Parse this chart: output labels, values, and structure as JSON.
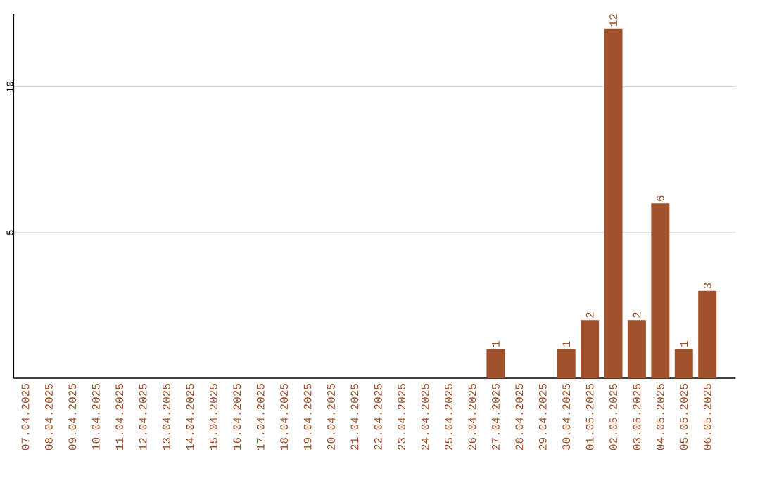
{
  "chart_data": {
    "type": "bar",
    "categories": [
      "07.04.2025",
      "08.04.2025",
      "09.04.2025",
      "10.04.2025",
      "11.04.2025",
      "12.04.2025",
      "13.04.2025",
      "14.04.2025",
      "15.04.2025",
      "16.04.2025",
      "17.04.2025",
      "18.04.2025",
      "19.04.2025",
      "20.04.2025",
      "21.04.2025",
      "22.04.2025",
      "23.04.2025",
      "24.04.2025",
      "25.04.2025",
      "26.04.2025",
      "27.04.2025",
      "28.04.2025",
      "29.04.2025",
      "30.04.2025",
      "01.05.2025",
      "02.05.2025",
      "03.05.2025",
      "04.05.2025",
      "05.05.2025",
      "06.05.2025"
    ],
    "values": [
      0,
      0,
      0,
      0,
      0,
      0,
      0,
      0,
      0,
      0,
      0,
      0,
      0,
      0,
      0,
      0,
      0,
      0,
      0,
      0,
      1,
      0,
      0,
      1,
      2,
      12,
      2,
      6,
      1,
      3
    ],
    "value_labels": [
      null,
      null,
      null,
      null,
      null,
      null,
      null,
      null,
      null,
      null,
      null,
      null,
      null,
      null,
      null,
      null,
      null,
      null,
      null,
      null,
      "1",
      null,
      null,
      "1",
      "2",
      "12",
      "2",
      "6",
      "1",
      "3"
    ],
    "color": "#a0522d",
    "ylim": [
      0,
      12.5
    ],
    "yticks": [
      5,
      10
    ],
    "grid": "y"
  }
}
